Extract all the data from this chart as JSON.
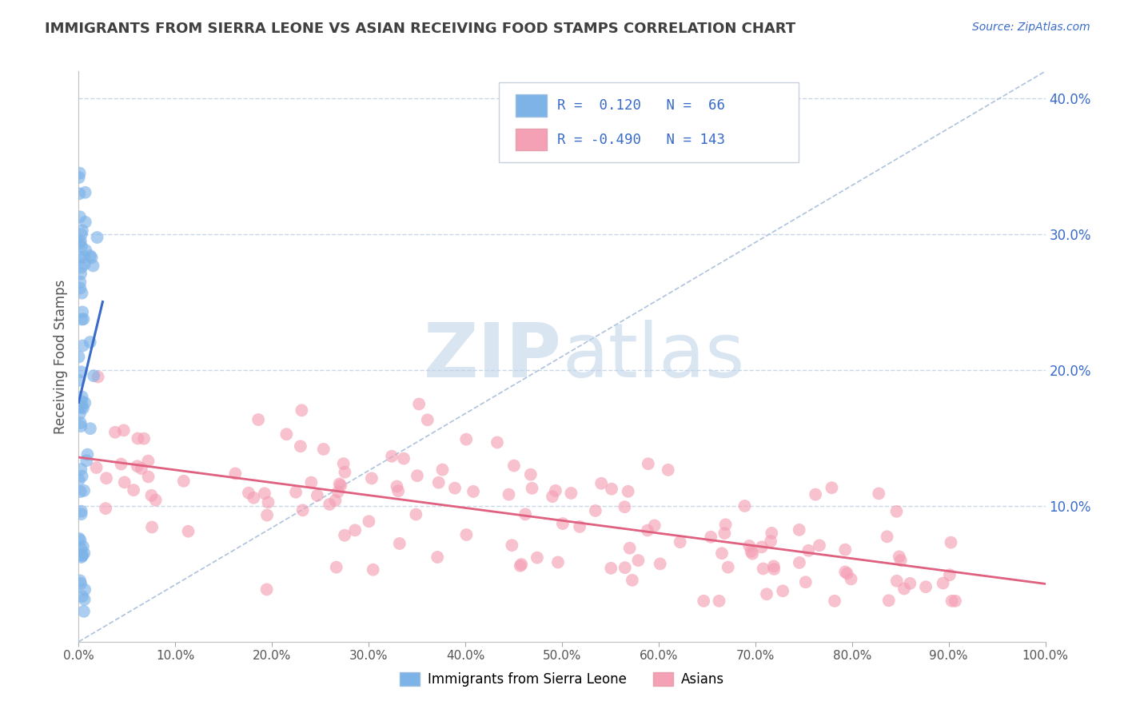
{
  "title": "IMMIGRANTS FROM SIERRA LEONE VS ASIAN RECEIVING FOOD STAMPS CORRELATION CHART",
  "source": "Source: ZipAtlas.com",
  "ylabel": "Receiving Food Stamps",
  "xlim": [
    0.0,
    1.0
  ],
  "ylim": [
    0.0,
    0.42
  ],
  "xtick_vals": [
    0.0,
    0.1,
    0.2,
    0.3,
    0.4,
    0.5,
    0.6,
    0.7,
    0.8,
    0.9,
    1.0
  ],
  "xtick_labels": [
    "0.0%",
    "10.0%",
    "20.0%",
    "30.0%",
    "40.0%",
    "50.0%",
    "60.0%",
    "70.0%",
    "80.0%",
    "90.0%",
    "100.0%"
  ],
  "ytick_vals": [
    0.1,
    0.2,
    0.3,
    0.4
  ],
  "ytick_labels": [
    "10.0%",
    "20.0%",
    "30.0%",
    "40.0%"
  ],
  "blue_R": 0.12,
  "blue_N": 66,
  "pink_R": -0.49,
  "pink_N": 143,
  "blue_color": "#7eb3e8",
  "pink_color": "#f4a0b5",
  "blue_line_color": "#3a6bc9",
  "pink_line_color": "#e06080",
  "diagonal_color": "#a0b8d8",
  "watermark": "ZIPatlas",
  "watermark_zip_color": "#c0d4e8",
  "watermark_atlas_color": "#c0d4e8",
  "background_color": "#ffffff",
  "grid_color": "#c8d8e8",
  "title_color": "#404040",
  "source_color": "#3a6bc9",
  "legend_label_blue": "Immigrants from Sierra Leone",
  "legend_label_pink": "Asians",
  "blue_seed": 7,
  "pink_seed": 55
}
